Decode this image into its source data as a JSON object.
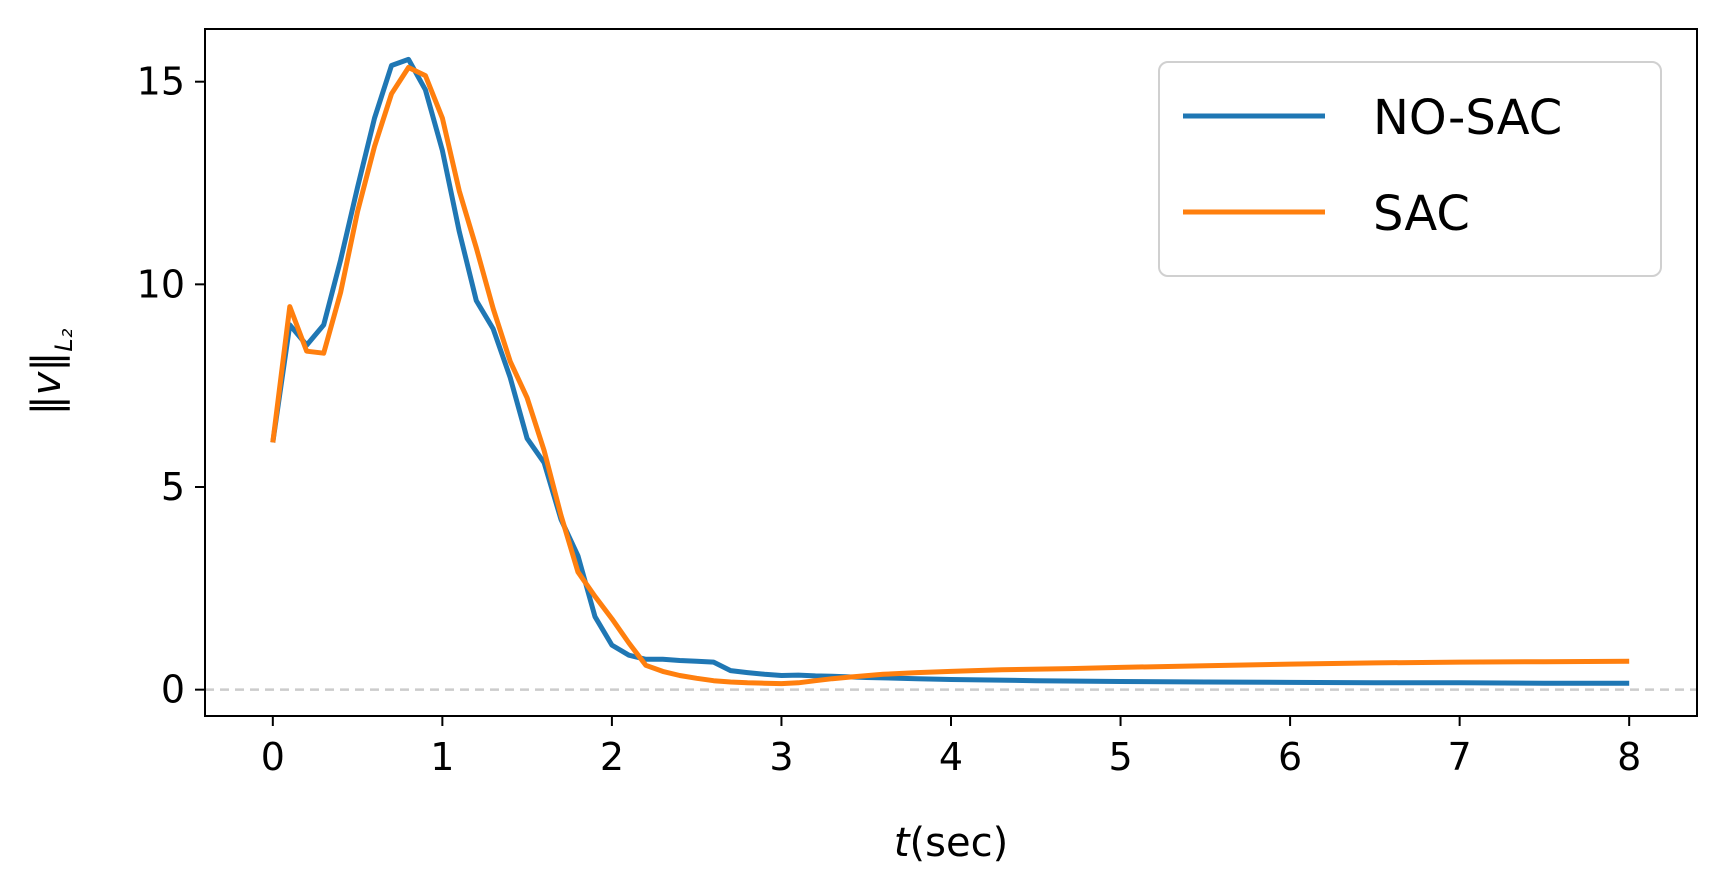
{
  "chart_data": {
    "type": "line",
    "xlabel": "t(sec)",
    "xlabel_italic_part": "t",
    "xlabel_rest": "(sec)",
    "ylabel": "‖v‖L₂",
    "ylabel_main": "‖v‖",
    "ylabel_sub": "L₂",
    "xlim": [
      -0.4,
      8.4
    ],
    "ylim": [
      -0.65,
      16.3
    ],
    "xticks": [
      0,
      1,
      2,
      3,
      4,
      5,
      6,
      7,
      8
    ],
    "yticks": [
      0,
      5,
      10,
      15
    ],
    "reference_line": {
      "y": 0,
      "style": "dashed",
      "color": "#cccccc"
    },
    "grid": false,
    "legend_position": "top-right",
    "series": [
      {
        "name": "NO-SAC",
        "color": "#1f77b4",
        "points": [
          [
            0,
            6.1
          ],
          [
            0.1,
            9.0
          ],
          [
            0.2,
            8.5
          ],
          [
            0.3,
            9.0
          ],
          [
            0.4,
            10.6
          ],
          [
            0.5,
            12.4
          ],
          [
            0.6,
            14.1
          ],
          [
            0.7,
            15.4
          ],
          [
            0.8,
            15.55
          ],
          [
            0.9,
            14.8
          ],
          [
            1.0,
            13.3
          ],
          [
            1.1,
            11.3
          ],
          [
            1.2,
            9.6
          ],
          [
            1.3,
            8.9
          ],
          [
            1.4,
            7.7
          ],
          [
            1.5,
            6.2
          ],
          [
            1.6,
            5.6
          ],
          [
            1.7,
            4.2
          ],
          [
            1.8,
            3.3
          ],
          [
            1.9,
            1.8
          ],
          [
            2.0,
            1.1
          ],
          [
            2.1,
            0.85
          ],
          [
            2.2,
            0.75
          ],
          [
            2.3,
            0.75
          ],
          [
            2.4,
            0.72
          ],
          [
            2.5,
            0.7
          ],
          [
            2.6,
            0.68
          ],
          [
            2.7,
            0.47
          ],
          [
            2.8,
            0.42
          ],
          [
            2.9,
            0.38
          ],
          [
            3.0,
            0.35
          ],
          [
            3.1,
            0.36
          ],
          [
            3.2,
            0.34
          ],
          [
            3.3,
            0.33
          ],
          [
            3.5,
            0.3
          ],
          [
            3.8,
            0.27
          ],
          [
            4.0,
            0.25
          ],
          [
            4.5,
            0.22
          ],
          [
            5.0,
            0.2
          ],
          [
            5.5,
            0.19
          ],
          [
            6.0,
            0.18
          ],
          [
            6.5,
            0.17
          ],
          [
            7.0,
            0.17
          ],
          [
            7.5,
            0.16
          ],
          [
            8.0,
            0.16
          ]
        ]
      },
      {
        "name": "SAC",
        "color": "#ff7f0e",
        "points": [
          [
            0,
            6.1
          ],
          [
            0.1,
            9.45
          ],
          [
            0.2,
            8.35
          ],
          [
            0.3,
            8.3
          ],
          [
            0.4,
            9.8
          ],
          [
            0.5,
            11.8
          ],
          [
            0.6,
            13.4
          ],
          [
            0.7,
            14.7
          ],
          [
            0.8,
            15.35
          ],
          [
            0.9,
            15.15
          ],
          [
            1.0,
            14.1
          ],
          [
            1.1,
            12.3
          ],
          [
            1.2,
            10.9
          ],
          [
            1.3,
            9.4
          ],
          [
            1.4,
            8.1
          ],
          [
            1.5,
            7.2
          ],
          [
            1.6,
            5.9
          ],
          [
            1.7,
            4.3
          ],
          [
            1.8,
            2.9
          ],
          [
            1.9,
            2.3
          ],
          [
            2.0,
            1.75
          ],
          [
            2.1,
            1.15
          ],
          [
            2.2,
            0.6
          ],
          [
            2.3,
            0.45
          ],
          [
            2.4,
            0.35
          ],
          [
            2.5,
            0.28
          ],
          [
            2.6,
            0.22
          ],
          [
            2.7,
            0.19
          ],
          [
            2.8,
            0.17
          ],
          [
            2.9,
            0.16
          ],
          [
            3.0,
            0.15
          ],
          [
            3.1,
            0.17
          ],
          [
            3.2,
            0.22
          ],
          [
            3.3,
            0.27
          ],
          [
            3.4,
            0.31
          ],
          [
            3.6,
            0.38
          ],
          [
            3.8,
            0.42
          ],
          [
            4.0,
            0.45
          ],
          [
            4.3,
            0.49
          ],
          [
            4.7,
            0.52
          ],
          [
            5.0,
            0.55
          ],
          [
            5.5,
            0.59
          ],
          [
            6.0,
            0.63
          ],
          [
            6.5,
            0.66
          ],
          [
            7.0,
            0.68
          ],
          [
            7.5,
            0.69
          ],
          [
            8.0,
            0.7
          ]
        ]
      }
    ]
  }
}
